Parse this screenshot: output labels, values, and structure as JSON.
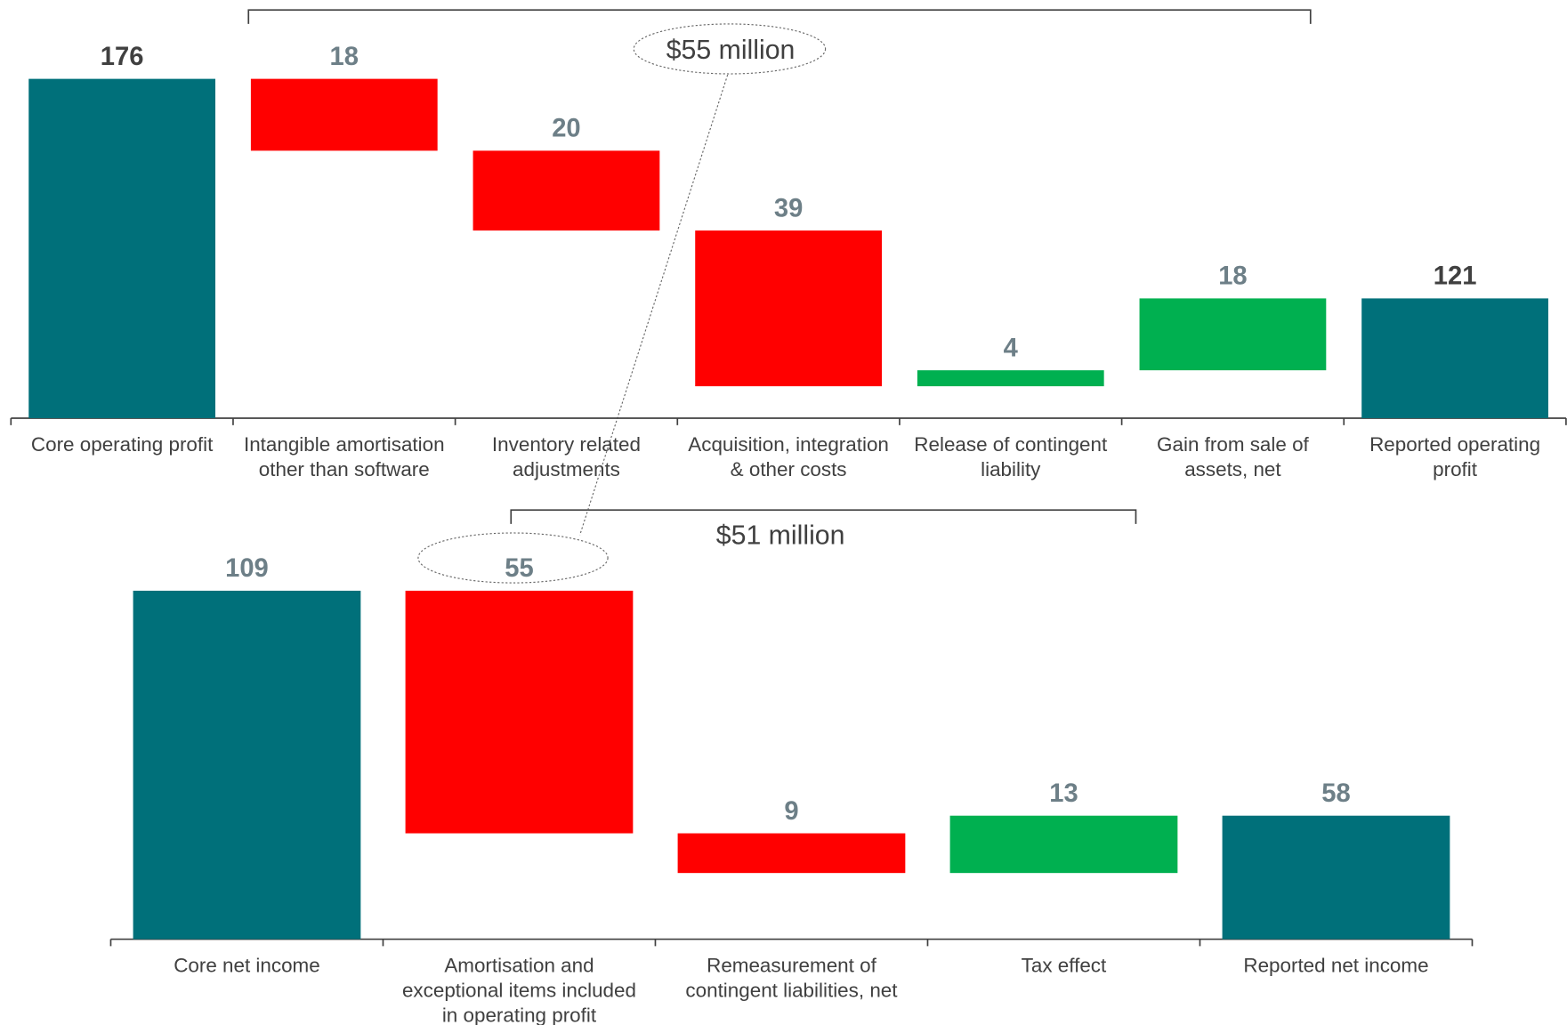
{
  "chart_data": [
    {
      "type": "waterfall",
      "categories": [
        "Core operating profit",
        "Intangible amortisation\nother than software",
        "Inventory related\nadjustments",
        "Acquisition, integration\n& other costs",
        "Release of contingent\nliability",
        "Gain from sale of\nassets, net",
        "Reported operating\nprofit"
      ],
      "values": [
        176,
        18,
        20,
        39,
        4,
        18,
        121
      ],
      "measure": [
        "total",
        "decrease",
        "decrease",
        "decrease",
        "increase",
        "increase",
        "total"
      ],
      "colors": {
        "total": "#00707a",
        "decrease": "#ff0000",
        "increase": "#00b050"
      },
      "label_color": "#6d7f87",
      "total_label_color": "#404040",
      "ylim": [
        91,
        195
      ],
      "annotations": [
        "$55 million"
      ]
    },
    {
      "type": "waterfall",
      "categories": [
        "Core net income",
        "Amortisation and\nexceptional items included\nin operating profit",
        "Remeasurement of\ncontingent liabilities, net",
        "Tax effect",
        "Reported net income"
      ],
      "values": [
        109,
        55,
        9,
        13,
        58
      ],
      "measure": [
        "total",
        "decrease",
        "decrease",
        "increase",
        "total"
      ],
      "colors": {
        "total": "#00707a",
        "decrease": "#ff0000",
        "increase": "#00b050"
      },
      "label_color": "#6d7f87",
      "total_label_color": "#6d7f87",
      "ylim": [
        30,
        123
      ],
      "annotations": [
        "$51 million"
      ]
    }
  ]
}
